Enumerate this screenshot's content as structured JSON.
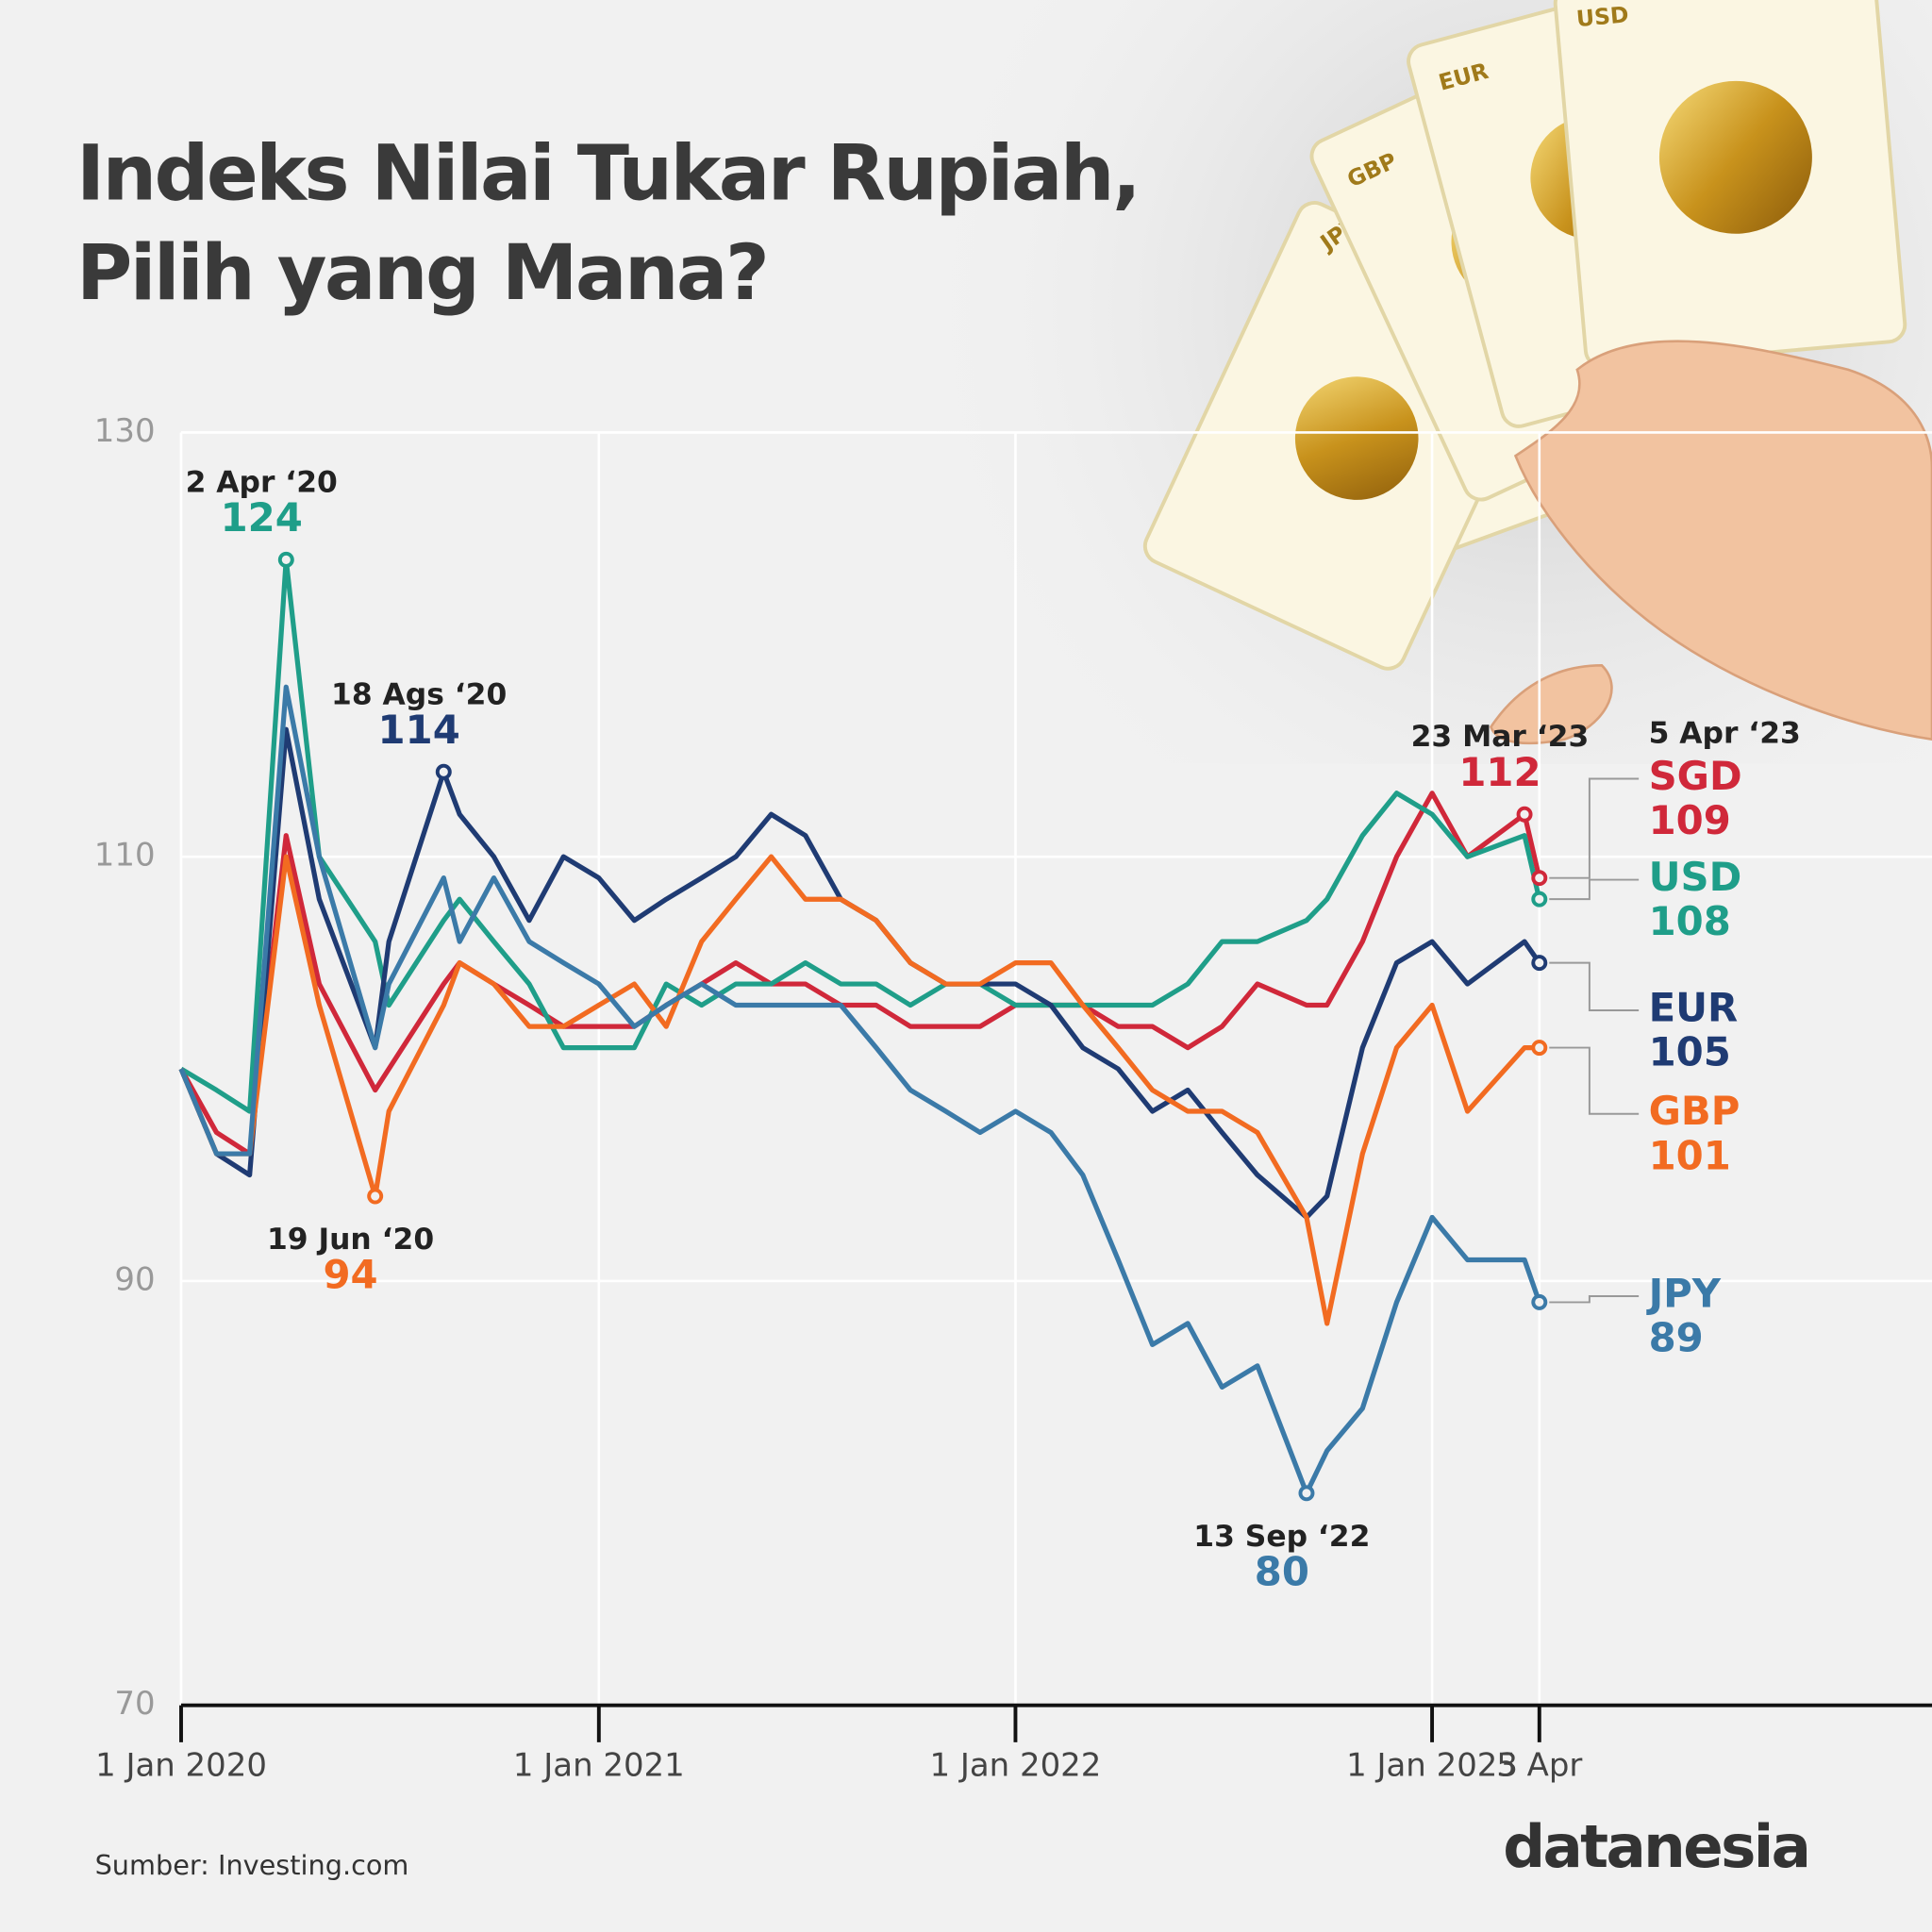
{
  "chart_data": {
    "type": "line",
    "title": [
      "Indeks Nilai Tukar Rupiah,",
      "Pilih yang Mana?"
    ],
    "source": "Sumber: Investing.com",
    "brand": "datanesia",
    "x": [
      "2020-01-01",
      "2020-02-01",
      "2020-03-01",
      "2020-04-02",
      "2020-05-01",
      "2020-06-19",
      "2020-07-01",
      "2020-08-18",
      "2020-09-01",
      "2020-10-01",
      "2020-11-01",
      "2020-12-01",
      "2021-01-01",
      "2021-02-01",
      "2021-03-01",
      "2021-04-01",
      "2021-05-01",
      "2021-06-01",
      "2021-07-01",
      "2021-08-01",
      "2021-09-01",
      "2021-10-01",
      "2021-11-01",
      "2021-12-01",
      "2022-01-01",
      "2022-02-01",
      "2022-03-01",
      "2022-04-01",
      "2022-05-01",
      "2022-06-01",
      "2022-07-01",
      "2022-08-01",
      "2022-09-13",
      "2022-10-01",
      "2022-11-01",
      "2022-12-01",
      "2023-01-01",
      "2023-02-01",
      "2023-03-23",
      "2023-04-05"
    ],
    "series": [
      {
        "name": "SGD",
        "color": "#d0283a",
        "values": [
          100,
          97,
          96,
          111,
          104,
          99,
          100,
          104,
          105,
          104,
          103,
          102,
          102,
          102,
          103,
          104,
          105,
          104,
          104,
          103,
          103,
          102,
          102,
          102,
          103,
          103,
          103,
          102,
          102,
          101,
          102,
          104,
          103,
          103,
          106,
          110,
          113,
          110,
          112,
          109
        ]
      },
      {
        "name": "USD",
        "color": "#1f9e89",
        "values": [
          100,
          99,
          98,
          124,
          110,
          106,
          103,
          107,
          108,
          106,
          104,
          101,
          101,
          101,
          104,
          103,
          104,
          104,
          105,
          104,
          104,
          103,
          104,
          104,
          103,
          103,
          103,
          103,
          103,
          104,
          106,
          106,
          107,
          108,
          111,
          113,
          112,
          110,
          111,
          108
        ]
      },
      {
        "name": "EUR",
        "color": "#1f3b73",
        "values": [
          100,
          96,
          95,
          116,
          108,
          101,
          106,
          114,
          112,
          110,
          107,
          110,
          109,
          107,
          108,
          109,
          110,
          112,
          111,
          108,
          107,
          105,
          104,
          104,
          104,
          103,
          101,
          100,
          98,
          99,
          97,
          95,
          93,
          94,
          101,
          105,
          106,
          104,
          106,
          105
        ]
      },
      {
        "name": "GBP",
        "color": "#f26b21",
        "values": [
          100,
          96,
          96,
          110,
          103,
          94,
          98,
          103,
          105,
          104,
          102,
          102,
          103,
          104,
          102,
          106,
          108,
          110,
          108,
          108,
          107,
          105,
          104,
          104,
          105,
          105,
          103,
          101,
          99,
          98,
          98,
          97,
          93,
          88,
          96,
          101,
          103,
          98,
          101,
          101
        ]
      },
      {
        "name": "JPY",
        "color": "#3b7aa8",
        "values": [
          100,
          96,
          96,
          118,
          110,
          101,
          104,
          109,
          106,
          109,
          106,
          105,
          104,
          102,
          103,
          104,
          103,
          103,
          103,
          103,
          101,
          99,
          98,
          97,
          98,
          97,
          95,
          91,
          87,
          88,
          85,
          86,
          80,
          82,
          84,
          89,
          93,
          91,
          91,
          89
        ]
      }
    ],
    "annotations": [
      {
        "x": "2020-04-02",
        "label": "2 Apr ‘20",
        "series": "USD"
      },
      {
        "x": "2020-06-19",
        "label": "19 Jun ‘20",
        "series": "GBP"
      },
      {
        "x": "2020-08-18",
        "label": "18 Ags ‘20",
        "series": "EUR"
      },
      {
        "x": "2022-09-13",
        "label": "13 Sep ‘22",
        "series": "JPY"
      },
      {
        "x": "2023-03-23",
        "label": "23 Mar ‘23",
        "series": "SGD"
      }
    ],
    "end_label": "5 Apr ‘23",
    "xlim": [
      "2020-01-01",
      "2024-03-14"
    ],
    "xticks": [
      {
        "value": "2020-01-01",
        "label": "1 Jan 2020"
      },
      {
        "value": "2021-01-01",
        "label": "1 Jan 2021"
      },
      {
        "value": "2022-01-01",
        "label": "1 Jan 2022"
      },
      {
        "value": "2023-01-01",
        "label": "1 Jan 2023"
      },
      {
        "value": "2023-04-05",
        "label": "5 Apr"
      }
    ],
    "ylim": [
      70,
      130
    ],
    "yticks": [
      70,
      90,
      110,
      130
    ],
    "grid": true
  }
}
